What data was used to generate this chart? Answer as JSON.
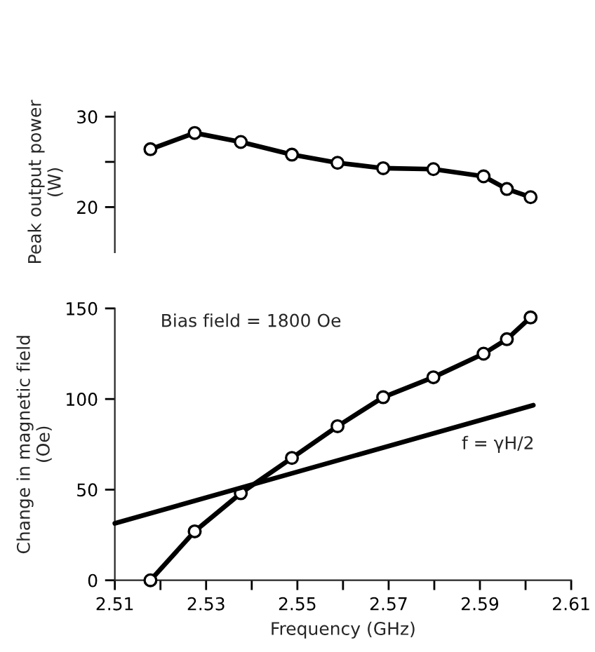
{
  "chart_data": [
    {
      "type": "line",
      "ylabel": "Peak output power\n(W)",
      "x": [
        2.5178,
        2.5275,
        2.5376,
        2.5488,
        2.5588,
        2.5688,
        2.5798,
        2.5908,
        2.5959,
        2.6011
      ],
      "xlim": [
        2.51,
        2.61
      ],
      "ylim": [
        15,
        30.5
      ],
      "yticks": [
        20,
        {
          "value": 25,
          "label": null
        },
        30
      ],
      "tick_labels": "y",
      "marker": "circle",
      "line_style": "solid",
      "grid": false,
      "series": [
        {
          "color": "#000000",
          "values": [
            26.4,
            28.2,
            27.2,
            25.8,
            24.9,
            24.3,
            24.2,
            23.4,
            22.0,
            21.1
          ]
        }
      ]
    },
    {
      "type": "line",
      "xlabel": "Frequency (GHz)",
      "ylabel": "Change in magnetic field\n(Oe)",
      "xlim": [
        2.51,
        2.61
      ],
      "ylim": [
        0,
        150
      ],
      "xticks": [
        2.51,
        {
          "value": 2.52,
          "label": null
        },
        2.53,
        {
          "value": 2.54,
          "label": null
        },
        2.55,
        {
          "value": 2.56,
          "label": null
        },
        2.57,
        {
          "value": 2.58,
          "label": null
        },
        2.59,
        {
          "value": 2.6,
          "label": null
        },
        2.61
      ],
      "yticks": [
        0,
        50,
        100,
        150
      ],
      "grid": false,
      "line_style": "solid",
      "annotations": [
        "Bias field = 1800 Oe",
        "f = γH/2"
      ],
      "series": [
        {
          "color": "#000000",
          "marker": "circle",
          "x": [
            2.5178,
            2.5275,
            2.5376,
            2.5488,
            2.5588,
            2.5688,
            2.5798,
            2.5908,
            2.5959,
            2.6011
          ],
          "values": [
            0,
            27,
            48,
            67.5,
            85,
            101,
            112,
            125,
            133,
            145
          ]
        },
        {
          "color": "#000000",
          "marker": "none",
          "x": [
            2.51,
            2.6017
          ],
          "values": [
            31.4,
            96.6
          ]
        }
      ]
    }
  ]
}
